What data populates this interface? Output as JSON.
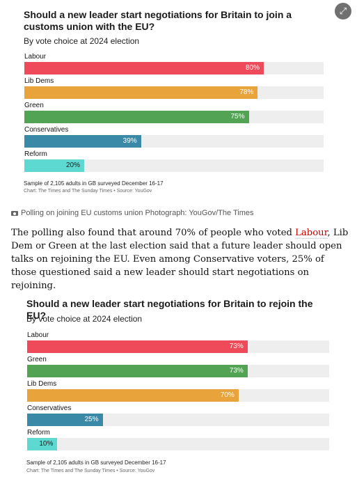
{
  "chart_data": [
    {
      "type": "bar",
      "orientation": "horizontal",
      "title": "Should a new leader start negotiations for Britain to join a customs union with the EU?",
      "subtitle": "By vote choice at 2024 election",
      "categories": [
        "Labour",
        "Lib Dems",
        "Green",
        "Conservatives",
        "Reform"
      ],
      "values": [
        80,
        78,
        75,
        39,
        20
      ],
      "value_labels": [
        "80%",
        "78%",
        "75%",
        "39%",
        "20%"
      ],
      "colors": [
        "#ef4a5a",
        "#e9a33b",
        "#52a454",
        "#3a8aa7",
        "#5ed9d1"
      ],
      "xlim": [
        0,
        100
      ],
      "grid": false,
      "note": "Sample of 2,105 adults in GB surveyed December 16-17",
      "source": "Chart: The Times and The Sunday Times • Source: YouGov"
    },
    {
      "type": "bar",
      "orientation": "horizontal",
      "title": "Should a new leader start negotiations for Britain to rejoin the EU?",
      "subtitle": "By vote choice at 2024 election",
      "categories": [
        "Labour",
        "Green",
        "Lib Dems",
        "Conservatives",
        "Reform"
      ],
      "values": [
        73,
        73,
        70,
        25,
        10
      ],
      "value_labels": [
        "73%",
        "73%",
        "70%",
        "25%",
        "10%"
      ],
      "colors": [
        "#ef4a5a",
        "#52a454",
        "#e9a33b",
        "#3a8aa7",
        "#5ed9d1"
      ],
      "xlim": [
        0,
        100
      ],
      "grid": false,
      "note": "Sample of 2,105 adults in GB surveyed December 16-17",
      "source": "Chart: The Times and The Sunday Times • Source: YouGov"
    }
  ],
  "ui": {
    "expand_icon": "expand-icon",
    "expand_glyph": "⤢",
    "camera_icon": "camera-icon"
  },
  "caption": "Polling on joining EU customs union Photograph: YouGov/The Times",
  "article": {
    "before_link": "The polling also found that around 70% of people who voted ",
    "link_text": "Labour",
    "after_link": ", Lib Dem or Green at the last election said that a future leader should open talks on rejoining the EU. Even among Conservative voters, 25% of those questioned said a new leader should start negotiations on rejoining."
  }
}
